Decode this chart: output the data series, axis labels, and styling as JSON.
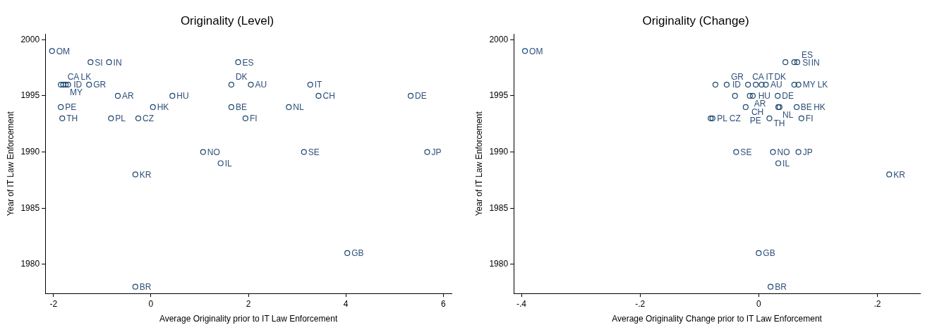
{
  "chart_data": [
    {
      "type": "scatter",
      "title": "Originality (Level)",
      "xlabel": "Average Originality prior to IT Law Enforcement",
      "ylabel": "Year of IT Law Enforcement",
      "xlim": [
        -2.17,
        6.17
      ],
      "ylim": [
        1977.4,
        2000.5
      ],
      "xticks": [
        -2,
        0,
        2,
        4,
        6
      ],
      "yticks": [
        1980,
        1985,
        1990,
        1995,
        2000
      ],
      "grid": false,
      "legend": false,
      "marker": "circle",
      "series": [
        {
          "color": "#1a476f",
          "x": [
            -2.03,
            -1.24,
            -0.86,
            -1.27,
            -1.85,
            -1.8,
            -1.75,
            -1.7,
            -0.68,
            0.44,
            -1.85,
            0.04,
            -1.82,
            -0.82,
            -0.26,
            1.79,
            1.65,
            2.05,
            3.27,
            3.44,
            5.33,
            1.65,
            2.83,
            1.94,
            1.07,
            1.43,
            3.14,
            5.67,
            -0.32,
            4.03,
            -0.32
          ],
          "values": [
            1999,
            1998,
            1998,
            1996,
            1996,
            1996,
            1996,
            1996,
            1995,
            1995,
            1994,
            1994,
            1993,
            1993,
            1993,
            1998,
            1996,
            1996,
            1996,
            1995,
            1995,
            1994,
            1994,
            1993,
            1990,
            1989,
            1990,
            1990,
            1988,
            1981,
            1978
          ]
        }
      ],
      "annotations": [
        {
          "text": "OM",
          "x": -2.03,
          "y": 1999
        },
        {
          "text": "SI",
          "x": -1.24,
          "y": 1998
        },
        {
          "text": "IN",
          "x": -0.86,
          "y": 1998
        },
        {
          "text": "GR",
          "x": -1.27,
          "y": 1996
        },
        {
          "text": "ID",
          "x": -1.85,
          "y": 1996
        },
        {
          "text": "CA",
          "x": -1.8,
          "y": 1996
        },
        {
          "text": "MY",
          "x": -1.75,
          "y": 1996
        },
        {
          "text": "LK",
          "x": -1.7,
          "y": 1996
        },
        {
          "text": "AR",
          "x": -0.68,
          "y": 1995
        },
        {
          "text": "HU",
          "x": 0.44,
          "y": 1995
        },
        {
          "text": "PE",
          "x": -1.85,
          "y": 1994
        },
        {
          "text": "HK",
          "x": 0.04,
          "y": 1994
        },
        {
          "text": "TH",
          "x": -1.82,
          "y": 1993
        },
        {
          "text": "PL",
          "x": -0.82,
          "y": 1993
        },
        {
          "text": "CZ",
          "x": -0.26,
          "y": 1993
        },
        {
          "text": "ES",
          "x": 1.79,
          "y": 1998
        },
        {
          "text": "DK",
          "x": 1.65,
          "y": 1996
        },
        {
          "text": "AU",
          "x": 2.05,
          "y": 1996
        },
        {
          "text": "IT",
          "x": 3.27,
          "y": 1996
        },
        {
          "text": "CH",
          "x": 3.44,
          "y": 1995
        },
        {
          "text": "DE",
          "x": 5.33,
          "y": 1995
        },
        {
          "text": "BE",
          "x": 1.65,
          "y": 1994
        },
        {
          "text": "NL",
          "x": 2.83,
          "y": 1994
        },
        {
          "text": "FI",
          "x": 1.94,
          "y": 1993
        },
        {
          "text": "NO",
          "x": 1.07,
          "y": 1990
        },
        {
          "text": "IL",
          "x": 1.43,
          "y": 1989
        },
        {
          "text": "SE",
          "x": 3.14,
          "y": 1990
        },
        {
          "text": "JP",
          "x": 5.67,
          "y": 1990
        },
        {
          "text": "KR",
          "x": -0.32,
          "y": 1988
        },
        {
          "text": "GB",
          "x": 4.03,
          "y": 1981
        },
        {
          "text": "BR",
          "x": -0.32,
          "y": 1978
        }
      ]
    },
    {
      "type": "scatter",
      "title": "Originality (Change)",
      "xlabel": "Average Originality Change prior to IT Law Enforcement",
      "ylabel": "Year of IT Law Enforcement",
      "xlim": [
        -0.413,
        0.272
      ],
      "ylim": [
        1977.4,
        2000.5
      ],
      "xticks": [
        {
          "value": -0.4,
          "label": "-.4"
        },
        {
          "value": -0.2,
          "label": "-.2"
        },
        0,
        {
          "value": 0.2,
          "label": ".2"
        }
      ],
      "yticks": [
        1980,
        1985,
        1990,
        1995,
        2000
      ],
      "grid": false,
      "legend": false,
      "marker": "circle",
      "series": [
        {
          "color": "#1a476f",
          "x": [
            -0.394,
            0.045,
            0.06,
            0.065,
            -0.073,
            -0.054,
            -0.018,
            -0.005,
            0.005,
            0.012,
            0.06,
            0.067,
            -0.04,
            -0.015,
            -0.01,
            0.032,
            -0.022,
            0.033,
            0.035,
            0.064,
            -0.081,
            -0.078,
            0.018,
            0.072,
            -0.038,
            0.024,
            0.067,
            0.033,
            0.22,
            0,
            0.02
          ],
          "values": [
            1999,
            1998,
            1998,
            1998,
            1996,
            1996,
            1996,
            1996,
            1996,
            1996,
            1996,
            1996,
            1995,
            1995,
            1995,
            1995,
            1994,
            1994,
            1994,
            1994,
            1993,
            1993,
            1993,
            1993,
            1990,
            1990,
            1990,
            1989,
            1988,
            1981,
            1978
          ]
        }
      ],
      "annotations": [
        {
          "text": "OM",
          "x": -0.394,
          "y": 1999
        },
        {
          "text": "SI",
          "x": 0.045,
          "y": 1998
        },
        {
          "text": "IN",
          "x": 0.06,
          "y": 1998
        },
        {
          "text": "ES",
          "x": 0.065,
          "y": 1998
        },
        {
          "text": "ID",
          "x": -0.073,
          "y": 1996
        },
        {
          "text": "GR",
          "x": -0.054,
          "y": 1996
        },
        {
          "text": "CA",
          "x": -0.018,
          "y": 1996
        },
        {
          "text": "AU",
          "x": -0.005,
          "y": 1996
        },
        {
          "text": "IT",
          "x": 0.005,
          "y": 1996
        },
        {
          "text": "DK",
          "x": 0.012,
          "y": 1996
        },
        {
          "text": "MY",
          "x": 0.06,
          "y": 1996
        },
        {
          "text": "LK",
          "x": 0.067,
          "y": 1996
        },
        {
          "text": "HU",
          "x": -0.04,
          "y": 1995
        },
        {
          "text": "AR",
          "x": -0.015,
          "y": 1995
        },
        {
          "text": "CH",
          "x": -0.01,
          "y": 1995
        },
        {
          "text": "DE",
          "x": 0.032,
          "y": 1995
        },
        {
          "text": "PE",
          "x": -0.022,
          "y": 1994
        },
        {
          "text": "NL",
          "x": 0.033,
          "y": 1994
        },
        {
          "text": "BE",
          "x": 0.035,
          "y": 1994
        },
        {
          "text": "HK",
          "x": 0.064,
          "y": 1994
        },
        {
          "text": "PL",
          "x": -0.081,
          "y": 1993
        },
        {
          "text": "CZ",
          "x": -0.078,
          "y": 1993
        },
        {
          "text": "TH",
          "x": 0.018,
          "y": 1993
        },
        {
          "text": "FI",
          "x": 0.072,
          "y": 1993
        },
        {
          "text": "SE",
          "x": -0.038,
          "y": 1990
        },
        {
          "text": "NO",
          "x": 0.024,
          "y": 1990
        },
        {
          "text": "JP",
          "x": 0.067,
          "y": 1990
        },
        {
          "text": "IL",
          "x": 0.033,
          "y": 1989
        },
        {
          "text": "KR",
          "x": 0.22,
          "y": 1988
        },
        {
          "text": "GB",
          "x": 0,
          "y": 1981
        },
        {
          "text": "BR",
          "x": 0.02,
          "y": 1978
        }
      ]
    }
  ]
}
